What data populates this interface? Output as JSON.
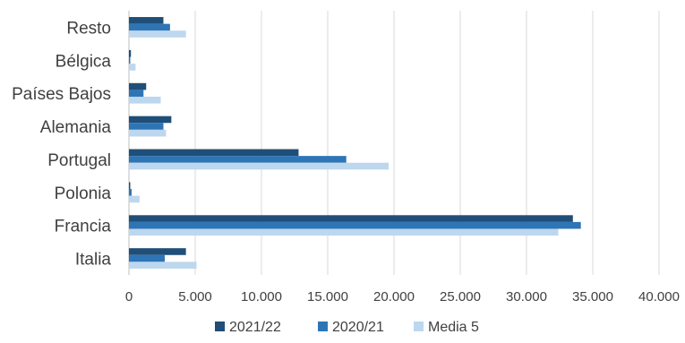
{
  "chart_data": {
    "type": "bar",
    "orientation": "horizontal",
    "categories": [
      "Resto",
      "Bélgica",
      "Países Bajos",
      "Alemania",
      "Portugal",
      "Polonia",
      "Francia",
      "Italia"
    ],
    "series": [
      {
        "name": "2021/22",
        "color": "#1f4e79",
        "values": [
          2600,
          150,
          1300,
          3200,
          12800,
          100,
          33500,
          4300
        ]
      },
      {
        "name": "2020/21",
        "color": "#2e75b6",
        "values": [
          3100,
          100,
          1100,
          2600,
          16400,
          200,
          34100,
          2700
        ]
      },
      {
        "name": "Media 5",
        "color": "#bdd7ee",
        "values": [
          4300,
          500,
          2400,
          2800,
          19600,
          800,
          32400,
          5100
        ]
      }
    ],
    "xlim": [
      0,
      40000
    ],
    "xticks": [
      0,
      5000,
      10000,
      15000,
      20000,
      25000,
      30000,
      35000,
      40000
    ],
    "xtick_labels": [
      "0",
      "5.000",
      "10.000",
      "15.000",
      "20.000",
      "25.000",
      "30.000",
      "35.000",
      "40.000"
    ],
    "grid": true,
    "legend_position": "bottom"
  }
}
